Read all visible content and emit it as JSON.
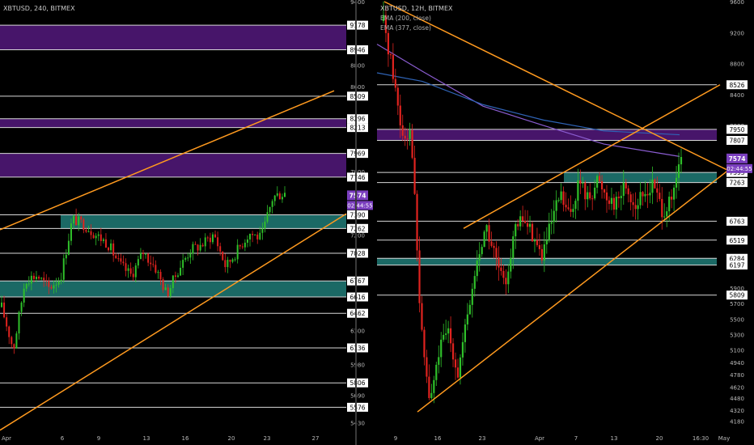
{
  "colors": {
    "background": "#000000",
    "up_candle": "#2fc02a",
    "down_candle": "#e0231f",
    "trendline": "#ff9a1f",
    "resistance_zone": "#4b1670",
    "support_zone": "#1c6f6a",
    "price_badge": "#7b3fbf",
    "level_line": "#d8d8d8",
    "ema200": "#8a5cd0",
    "ema377": "#2f63b5",
    "axis_text": "#b8b8b8",
    "divider": "#444444"
  },
  "chart_data": [
    {
      "type": "candlestick",
      "symbol_label": "XBTUSD, 240, BITMEX",
      "x_tick_labels": [
        "Apr",
        "6",
        "9",
        "13",
        "16",
        "20",
        "23",
        "27"
      ],
      "ylim": [
        5350,
        9400
      ],
      "y_tick_labels": [
        9400,
        9178,
        8946,
        8800,
        8600,
        8509,
        8296,
        8213,
        7969,
        7800,
        7746,
        7574,
        7390,
        7262,
        7200,
        7028,
        6767,
        6616,
        6462,
        6300,
        6136,
        5980,
        5806,
        5690,
        5576,
        5430
      ],
      "current_price": "7574",
      "countdown": "02:44:55",
      "horizontal_levels": [
        9178,
        8946,
        8509,
        8296,
        8213,
        7969,
        7746,
        7390,
        7262,
        7028,
        6767,
        6616,
        6462,
        6136,
        5806,
        5576
      ],
      "resistance_zones": [
        [
          8946,
          9178
        ],
        [
          7746,
          7969
        ],
        [
          8213,
          8296
        ]
      ],
      "support_zones": [
        [
          7262,
          7390
        ],
        [
          6616,
          6767
        ]
      ],
      "trendlines": [
        {
          "from": [
            "Apr",
            7250
          ],
          "to": [
            "25",
            8560
          ]
        },
        {
          "from": [
            "Apr",
            5360
          ],
          "to": [
            "27",
            7400
          ]
        }
      ],
      "price_path": [
        [
          "Apr",
          6520
        ],
        [
          "2",
          6120
        ],
        [
          "3",
          6780
        ],
        [
          "4",
          6820
        ],
        [
          "5",
          6700
        ],
        [
          "6",
          6800
        ],
        [
          "7",
          7350
        ],
        [
          "8",
          7300
        ],
        [
          "9",
          7200
        ],
        [
          "10",
          7120
        ],
        [
          "11",
          6920
        ],
        [
          "12",
          6820
        ],
        [
          "13",
          7040
        ],
        [
          "14",
          6900
        ],
        [
          "15",
          6640
        ],
        [
          "16",
          6880
        ],
        [
          "17",
          7060
        ],
        [
          "18",
          7110
        ],
        [
          "19",
          7210
        ],
        [
          "20",
          6900
        ],
        [
          "21",
          7060
        ],
        [
          "22",
          7220
        ],
        [
          "23",
          7170
        ],
        [
          "24",
          7560
        ],
        [
          "24.5",
          7600
        ]
      ]
    },
    {
      "type": "candlestick",
      "symbol_label": "XBTUSD, 12H, BITMEX",
      "legend": [
        "EMA (200, close)",
        "EMA (377, close)"
      ],
      "x_tick_labels": [
        "9",
        "16",
        "23",
        "Apr",
        "7",
        "13",
        "20",
        "16:30",
        "May"
      ],
      "ylim": [
        4050,
        9600
      ],
      "y_tick_labels": [
        9600,
        9200,
        8800,
        8526,
        8400,
        8000,
        7950,
        7807,
        7574,
        7393,
        7263,
        6763,
        6519,
        6284,
        6197,
        5900,
        5809,
        5700,
        5500,
        5300,
        5100,
        4940,
        4780,
        4620,
        4480,
        4320,
        4180
      ],
      "current_price": "7574",
      "countdown": "02:44:55",
      "horizontal_levels": [
        8526,
        7950,
        7807,
        7393,
        7263,
        6763,
        6519,
        6284,
        6197,
        5809
      ],
      "resistance_zones": [
        [
          7807,
          7950
        ]
      ],
      "support_zones": [
        [
          7263,
          7393
        ],
        [
          6197,
          6284
        ]
      ],
      "trendlines": [
        {
          "from": [
            "Mar 5",
            9600
          ],
          "to": [
            "Apr 29",
            7420
          ]
        },
        {
          "from": [
            "Mar 12",
            4300
          ],
          "to": [
            "Apr 29",
            7420
          ]
        },
        {
          "from": [
            "Mar 19",
            6670
          ],
          "to": [
            "May 1",
            8526
          ]
        }
      ],
      "price_path": [
        [
          "Mar 5",
          9350
        ],
        [
          "Mar 6",
          8700
        ],
        [
          "Mar 7",
          7900
        ],
        [
          "Mar 8",
          7930
        ],
        [
          "Mar 9",
          5400
        ],
        [
          "Mar 10",
          4400
        ],
        [
          "Mar 11",
          5100
        ],
        [
          "Mar 12",
          5350
        ],
        [
          "Mar 13",
          4800
        ],
        [
          "Mar 14",
          5500
        ],
        [
          "Mar 15",
          6200
        ],
        [
          "Mar 16",
          6700
        ],
        [
          "Mar 17",
          6300
        ],
        [
          "Mar 18",
          5900
        ],
        [
          "Mar 19",
          6600
        ],
        [
          "Mar 20",
          6800
        ],
        [
          "Mar 21",
          6600
        ],
        [
          "Mar 22",
          6300
        ],
        [
          "Mar 23",
          6700
        ],
        [
          "Mar 24",
          7100
        ],
        [
          "Mar 25",
          6800
        ],
        [
          "Apr",
          7280
        ],
        [
          "Apr 2",
          7050
        ],
        [
          "Apr 3",
          7300
        ],
        [
          "Apr 4",
          7100
        ],
        [
          "Apr 5",
          7000
        ],
        [
          "Apr 6",
          7250
        ],
        [
          "Apr 7",
          6950
        ],
        [
          "Apr 8",
          7100
        ],
        [
          "Apr 9",
          7240
        ],
        [
          "Apr 10",
          6900
        ],
        [
          "Apr 11",
          7000
        ],
        [
          "Apr 12",
          7574
        ]
      ],
      "ema200_path": [
        [
          0,
          9050
        ],
        [
          0.15,
          8700
        ],
        [
          0.35,
          8250
        ],
        [
          0.55,
          8000
        ],
        [
          0.75,
          7760
        ],
        [
          1,
          7600
        ]
      ],
      "ema377_path": [
        [
          0,
          8680
        ],
        [
          0.15,
          8570
        ],
        [
          0.35,
          8270
        ],
        [
          0.55,
          8070
        ],
        [
          0.75,
          7930
        ],
        [
          1,
          7880
        ]
      ]
    }
  ]
}
